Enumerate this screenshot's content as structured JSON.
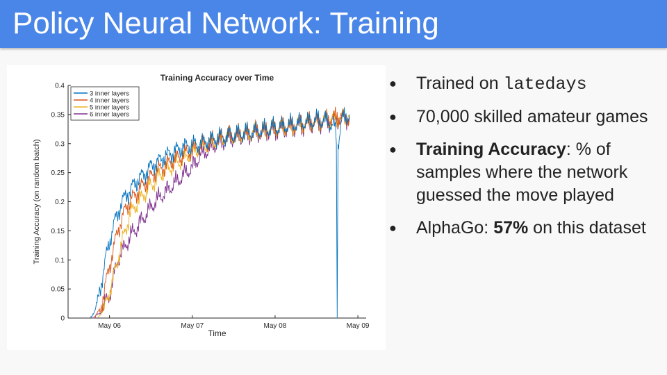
{
  "slide": {
    "title": "Policy Neural Network: Training"
  },
  "bullets": [
    {
      "text": "Trained on ",
      "code": "latedays"
    },
    {
      "text": "70,000 skilled amateur games"
    },
    {
      "bold": "Training Accuracy",
      "text": ": % of samples where the network guessed the move played"
    },
    {
      "text": "AlphaGo: ",
      "bold": "57%",
      "text_after": " on this dataset"
    }
  ],
  "colors": {
    "title_bar": "#4a86e8",
    "series_3": "#0072bd",
    "series_4": "#d95319",
    "series_5": "#edb120",
    "series_6": "#7e2f8e"
  },
  "chart_data": {
    "type": "line",
    "title": "Training Accuracy over Time",
    "xlabel": "Time",
    "ylabel": "Training Accuracy (on random batch)",
    "x_unit": "days",
    "x_ticks": [
      {
        "value": 6,
        "label": "May 06"
      },
      {
        "value": 7,
        "label": "May 07"
      },
      {
        "value": 8,
        "label": "May 08"
      },
      {
        "value": 9,
        "label": "May 09"
      }
    ],
    "xlim": [
      5.5,
      9.1
    ],
    "ylim": [
      0,
      0.4
    ],
    "y_ticks": [
      0,
      0.05,
      0.1,
      0.15,
      0.2,
      0.25,
      0.3,
      0.35,
      0.4
    ],
    "legend_position": "top-left",
    "grid": false,
    "series": [
      {
        "name": "3 inner layers",
        "color": "#0072bd",
        "x": [
          5.77,
          5.85,
          5.95,
          6.05,
          6.15,
          6.3,
          6.5,
          6.7,
          6.9,
          7.1,
          7.3,
          7.5,
          7.7,
          7.9,
          8.1,
          8.3,
          8.5,
          8.6,
          8.72,
          8.74,
          8.75,
          8.76,
          8.8,
          8.9
        ],
        "y": [
          0.0,
          0.02,
          0.1,
          0.16,
          0.2,
          0.23,
          0.26,
          0.28,
          0.295,
          0.3,
          0.31,
          0.315,
          0.32,
          0.325,
          0.33,
          0.335,
          0.34,
          0.34,
          0.33,
          0.3,
          0.0,
          0.3,
          0.34,
          0.35
        ]
      },
      {
        "name": "4 inner layers",
        "color": "#d95319",
        "x": [
          5.82,
          5.9,
          6.0,
          6.1,
          6.2,
          6.35,
          6.55,
          6.75,
          6.95,
          7.15,
          7.35,
          7.55,
          7.75,
          7.95,
          8.15,
          8.35,
          8.55,
          8.75,
          8.9
        ],
        "y": [
          0.0,
          0.02,
          0.09,
          0.15,
          0.19,
          0.22,
          0.25,
          0.27,
          0.285,
          0.3,
          0.31,
          0.315,
          0.32,
          0.325,
          0.33,
          0.335,
          0.34,
          0.345,
          0.345
        ]
      },
      {
        "name": "5 inner layers",
        "color": "#edb120",
        "x": [
          5.86,
          5.95,
          6.05,
          6.15,
          6.25,
          6.4,
          6.6,
          6.8,
          7.0,
          7.2,
          7.4,
          7.6,
          7.8,
          8.0,
          8.2,
          8.4,
          8.6,
          8.8,
          8.9
        ],
        "y": [
          0.0,
          0.02,
          0.07,
          0.13,
          0.18,
          0.21,
          0.245,
          0.265,
          0.285,
          0.3,
          0.31,
          0.315,
          0.32,
          0.325,
          0.33,
          0.335,
          0.34,
          0.345,
          0.35
        ]
      },
      {
        "name": "6 inner layers",
        "color": "#7e2f8e",
        "x": [
          5.8,
          5.9,
          6.0,
          6.1,
          6.25,
          6.4,
          6.55,
          6.7,
          6.85,
          7.0,
          7.1,
          7.3,
          7.5,
          7.7,
          7.9,
          8.1,
          8.3,
          8.5,
          8.7,
          8.9
        ],
        "y": [
          0.0,
          0.01,
          0.04,
          0.1,
          0.14,
          0.17,
          0.2,
          0.22,
          0.24,
          0.26,
          0.28,
          0.3,
          0.31,
          0.315,
          0.32,
          0.325,
          0.33,
          0.335,
          0.34,
          0.345
        ]
      }
    ]
  }
}
